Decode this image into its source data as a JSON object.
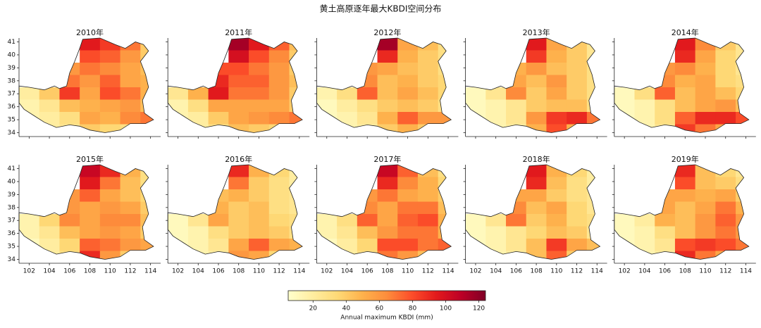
{
  "chart_data": {
    "type": "heatmap",
    "title": "黄土高原逐年最大KBDI空间分布",
    "xlim": [
      101,
      115
    ],
    "xticks": [
      102,
      104,
      106,
      108,
      110,
      112,
      114
    ],
    "ylim": [
      33.7,
      41.3
    ],
    "yticks": [
      34,
      35,
      36,
      37,
      38,
      39,
      40,
      41
    ],
    "panels": [
      {
        "title": "2010年",
        "grid": [
          [
            null,
            null,
            null,
            95,
            85,
            70,
            40
          ],
          [
            null,
            null,
            null,
            80,
            75,
            60,
            40
          ],
          [
            null,
            null,
            60,
            70,
            65,
            55,
            45
          ],
          [
            null,
            null,
            70,
            60,
            75,
            55,
            50
          ],
          [
            20,
            40,
            85,
            55,
            80,
            70,
            50
          ],
          [
            15,
            25,
            45,
            50,
            55,
            60,
            45
          ],
          [
            15,
            20,
            30,
            55,
            50,
            65,
            70
          ],
          [
            null,
            20,
            25,
            40,
            35,
            30,
            null
          ]
        ]
      },
      {
        "title": "2011年",
        "grid": [
          [
            null,
            null,
            null,
            115,
            95,
            75,
            45
          ],
          [
            null,
            null,
            null,
            100,
            80,
            65,
            40
          ],
          [
            null,
            null,
            80,
            80,
            70,
            60,
            40
          ],
          [
            null,
            null,
            90,
            75,
            75,
            60,
            45
          ],
          [
            25,
            50,
            95,
            70,
            70,
            60,
            40
          ],
          [
            15,
            30,
            55,
            55,
            55,
            55,
            40
          ],
          [
            15,
            20,
            40,
            55,
            60,
            65,
            70
          ],
          [
            null,
            20,
            30,
            45,
            40,
            35,
            null
          ]
        ]
      },
      {
        "title": "2012年",
        "grid": [
          [
            null,
            null,
            null,
            115,
            55,
            45,
            30
          ],
          [
            null,
            null,
            null,
            90,
            50,
            40,
            30
          ],
          [
            null,
            null,
            60,
            55,
            45,
            40,
            30
          ],
          [
            null,
            null,
            65,
            45,
            50,
            40,
            35
          ],
          [
            15,
            30,
            75,
            45,
            55,
            45,
            35
          ],
          [
            10,
            20,
            30,
            40,
            45,
            40,
            30
          ],
          [
            10,
            15,
            25,
            50,
            75,
            60,
            60
          ],
          [
            null,
            15,
            20,
            40,
            50,
            40,
            null
          ]
        ]
      },
      {
        "title": "2013年",
        "grid": [
          [
            null,
            null,
            null,
            95,
            55,
            40,
            25
          ],
          [
            null,
            null,
            null,
            85,
            50,
            40,
            25
          ],
          [
            null,
            null,
            50,
            60,
            45,
            40,
            30
          ],
          [
            null,
            null,
            55,
            45,
            60,
            40,
            30
          ],
          [
            10,
            25,
            65,
            40,
            55,
            40,
            30
          ],
          [
            10,
            15,
            25,
            40,
            45,
            45,
            30
          ],
          [
            10,
            15,
            25,
            60,
            85,
            90,
            70
          ],
          [
            null,
            15,
            20,
            50,
            80,
            50,
            null
          ]
        ]
      },
      {
        "title": "2014年",
        "grid": [
          [
            null,
            null,
            null,
            95,
            65,
            40,
            25
          ],
          [
            null,
            null,
            null,
            90,
            55,
            35,
            25
          ],
          [
            null,
            null,
            60,
            65,
            50,
            35,
            25
          ],
          [
            null,
            null,
            65,
            50,
            55,
            35,
            30
          ],
          [
            10,
            30,
            75,
            45,
            55,
            45,
            35
          ],
          [
            10,
            15,
            30,
            45,
            55,
            60,
            45
          ],
          [
            10,
            15,
            30,
            75,
            90,
            90,
            80
          ],
          [
            null,
            15,
            25,
            85,
            70,
            55,
            null
          ]
        ]
      },
      {
        "title": "2015年",
        "grid": [
          [
            null,
            null,
            null,
            105,
            90,
            50,
            30
          ],
          [
            null,
            null,
            null,
            95,
            70,
            45,
            30
          ],
          [
            null,
            null,
            60,
            75,
            55,
            45,
            35
          ],
          [
            null,
            null,
            60,
            55,
            60,
            55,
            40
          ],
          [
            15,
            35,
            65,
            55,
            65,
            65,
            45
          ],
          [
            15,
            25,
            45,
            55,
            60,
            55,
            40
          ],
          [
            10,
            20,
            35,
            75,
            70,
            60,
            55
          ],
          [
            null,
            20,
            30,
            90,
            60,
            40,
            null
          ]
        ]
      },
      {
        "title": "2016年",
        "grid": [
          [
            null,
            null,
            null,
            90,
            50,
            35,
            20
          ],
          [
            null,
            null,
            null,
            70,
            40,
            30,
            20
          ],
          [
            null,
            null,
            45,
            50,
            40,
            30,
            25
          ],
          [
            null,
            null,
            50,
            40,
            45,
            30,
            25
          ],
          [
            10,
            25,
            55,
            40,
            45,
            35,
            30
          ],
          [
            10,
            15,
            30,
            40,
            45,
            40,
            30
          ],
          [
            10,
            15,
            25,
            55,
            75,
            55,
            50
          ],
          [
            null,
            15,
            20,
            60,
            55,
            35,
            null
          ]
        ]
      },
      {
        "title": "2017年",
        "grid": [
          [
            null,
            null,
            null,
            105,
            75,
            45,
            30
          ],
          [
            null,
            null,
            null,
            90,
            65,
            50,
            35
          ],
          [
            null,
            null,
            60,
            70,
            55,
            50,
            40
          ],
          [
            null,
            null,
            65,
            55,
            70,
            70,
            45
          ],
          [
            15,
            30,
            75,
            55,
            75,
            80,
            50
          ],
          [
            15,
            25,
            45,
            60,
            70,
            70,
            50
          ],
          [
            10,
            20,
            35,
            80,
            80,
            70,
            75
          ],
          [
            null,
            20,
            30,
            70,
            60,
            45,
            null
          ]
        ]
      },
      {
        "title": "2018年",
        "grid": [
          [
            null,
            null,
            null,
            95,
            50,
            35,
            20
          ],
          [
            null,
            null,
            null,
            90,
            45,
            30,
            20
          ],
          [
            null,
            null,
            55,
            55,
            40,
            30,
            25
          ],
          [
            null,
            null,
            65,
            45,
            55,
            35,
            25
          ],
          [
            10,
            25,
            70,
            40,
            50,
            35,
            30
          ],
          [
            10,
            15,
            25,
            35,
            45,
            40,
            25
          ],
          [
            10,
            15,
            25,
            45,
            85,
            55,
            45
          ],
          [
            null,
            15,
            20,
            45,
            75,
            40,
            null
          ]
        ]
      },
      {
        "title": "2019年",
        "grid": [
          [
            null,
            null,
            null,
            90,
            45,
            35,
            25
          ],
          [
            null,
            null,
            null,
            80,
            45,
            40,
            30
          ],
          [
            null,
            null,
            55,
            55,
            50,
            55,
            40
          ],
          [
            null,
            null,
            55,
            45,
            55,
            70,
            50
          ],
          [
            10,
            20,
            50,
            45,
            60,
            75,
            60
          ],
          [
            10,
            15,
            30,
            45,
            60,
            70,
            60
          ],
          [
            10,
            15,
            25,
            80,
            85,
            80,
            70
          ],
          [
            null,
            15,
            20,
            90,
            70,
            55,
            null
          ]
        ]
      }
    ],
    "colorbar": {
      "label": "Annual maximum KBDI (mm)",
      "lim": [
        5,
        124
      ],
      "ticks": [
        20,
        40,
        60,
        80,
        100,
        120
      ],
      "colors": [
        "#ffffcc",
        "#ffeda0",
        "#fed976",
        "#feb24c",
        "#fd8d3c",
        "#fc4e2a",
        "#e31a1c",
        "#bd0026",
        "#800026"
      ]
    }
  }
}
